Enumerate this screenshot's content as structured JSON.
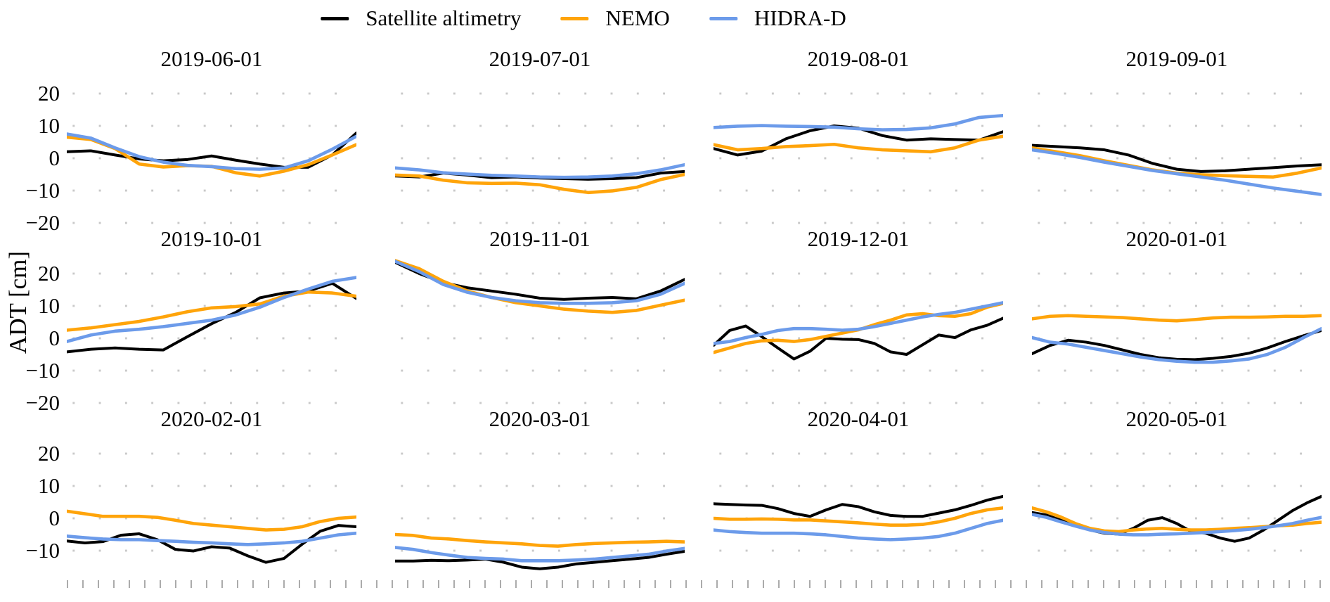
{
  "chart_data": {
    "type": "line",
    "layout": {
      "rows": 3,
      "cols": 4
    },
    "ylabel": "ADT [cm]",
    "ylim": [
      -25,
      25
    ],
    "yticks_full": [
      20,
      10,
      0,
      -10,
      -20
    ],
    "yticks_bottom_row": [
      20,
      10,
      0,
      -10
    ],
    "grid": "dotted horizontal gridlines every 10 cm",
    "legend_position": "top center",
    "legend": [
      {
        "label": "Satellite altimetry",
        "color": "#000000"
      },
      {
        "label": "NEMO",
        "color": "#FFA40A"
      },
      {
        "label": "HIDRA-D",
        "color": "#6C9BEA"
      }
    ],
    "colors": {
      "satellite": "#000000",
      "nemo": "#FFA40A",
      "hidra": "#6C9BEA",
      "grid_dot": "#c9c9c9",
      "axis_tick": "#ababab"
    },
    "subplots": [
      {
        "title": "2019-06-01",
        "satellite": [
          2.0,
          2.3,
          1.0,
          -0.2,
          -0.8,
          -0.4,
          0.7,
          -0.6,
          -1.8,
          -2.8,
          -2.8,
          1.0,
          7.8
        ],
        "nemo": [
          6.5,
          5.8,
          3.0,
          -1.8,
          -2.7,
          -2.3,
          -2.5,
          -4.5,
          -5.5,
          -4.0,
          -2.0,
          1.0,
          4.2
        ],
        "hidra": [
          7.5,
          6.2,
          3.2,
          0.5,
          -1.2,
          -2.2,
          -2.6,
          -3.2,
          -3.4,
          -3.0,
          -0.8,
          2.8,
          6.8
        ]
      },
      {
        "title": "2019-07-01",
        "satellite": [
          -5.5,
          -5.8,
          -4.6,
          -5.2,
          -6.0,
          -5.8,
          -6.1,
          -6.3,
          -6.5,
          -6.3,
          -6.0,
          -4.6,
          -4.1
        ],
        "nemo": [
          -5.2,
          -5.5,
          -6.8,
          -7.6,
          -7.8,
          -7.7,
          -8.2,
          -9.6,
          -10.6,
          -10.1,
          -9.0,
          -6.6,
          -5.0
        ],
        "hidra": [
          -3.0,
          -3.6,
          -4.5,
          -4.9,
          -5.3,
          -5.5,
          -5.8,
          -5.9,
          -5.8,
          -5.5,
          -4.8,
          -3.6,
          -2.0
        ]
      },
      {
        "title": "2019-08-01",
        "satellite": [
          3.0,
          1.0,
          2.2,
          6.0,
          8.5,
          10.0,
          9.3,
          7.0,
          5.6,
          6.0,
          5.8,
          5.6,
          8.2
        ],
        "nemo": [
          4.2,
          2.6,
          3.0,
          3.6,
          3.9,
          4.3,
          3.2,
          2.6,
          2.3,
          2.0,
          3.2,
          5.6,
          6.8
        ],
        "hidra": [
          9.5,
          9.9,
          10.1,
          9.9,
          9.8,
          9.6,
          9.1,
          8.8,
          8.9,
          9.4,
          10.6,
          12.6,
          13.2
        ]
      },
      {
        "title": "2019-09-01",
        "satellite": [
          4.0,
          3.6,
          3.2,
          2.6,
          1.0,
          -1.6,
          -3.4,
          -4.1,
          -3.9,
          -3.4,
          -2.9,
          -2.4,
          -2.0
        ],
        "nemo": [
          3.2,
          2.0,
          0.8,
          -0.8,
          -2.2,
          -3.6,
          -4.6,
          -5.1,
          -5.4,
          -5.6,
          -5.8,
          -4.6,
          -3.0
        ],
        "hidra": [
          2.6,
          1.5,
          0.2,
          -1.2,
          -2.5,
          -3.8,
          -4.8,
          -5.8,
          -6.8,
          -8.0,
          -9.2,
          -10.2,
          -11.2
        ]
      },
      {
        "title": "2019-10-01",
        "satellite": [
          -4.2,
          -3.4,
          -3.0,
          -3.4,
          -3.6,
          0.5,
          4.5,
          8.0,
          12.5,
          14.0,
          14.6,
          17.0,
          12.3
        ],
        "nemo": [
          2.5,
          3.2,
          4.2,
          5.2,
          6.6,
          8.2,
          9.4,
          9.8,
          10.6,
          13.0,
          14.3,
          14.0,
          13.0
        ],
        "hidra": [
          -1.0,
          1.0,
          2.2,
          2.8,
          3.6,
          4.6,
          5.6,
          7.2,
          9.6,
          12.6,
          15.2,
          17.6,
          18.8
        ]
      },
      {
        "title": "2019-11-01",
        "satellite": [
          23.5,
          20.0,
          17.2,
          15.6,
          14.6,
          13.6,
          12.4,
          12.0,
          12.4,
          12.6,
          12.2,
          14.6,
          18.2
        ],
        "nemo": [
          24.0,
          21.5,
          17.6,
          14.6,
          12.6,
          11.0,
          10.0,
          9.0,
          8.4,
          8.0,
          8.6,
          10.2,
          11.8
        ],
        "hidra": [
          23.8,
          20.6,
          16.6,
          14.2,
          12.6,
          11.6,
          11.0,
          10.8,
          10.8,
          11.0,
          11.6,
          13.6,
          17.0
        ]
      },
      {
        "title": "2019-12-01",
        "satellite": [
          -2.2,
          2.4,
          3.8,
          0.5,
          -3.0,
          -6.4,
          -4.0,
          0.0,
          -0.3,
          -0.4,
          -1.6,
          -4.2,
          -5.0,
          -2.0,
          1.0,
          0.2,
          2.6,
          4.0,
          6.2
        ],
        "nemo": [
          -4.4,
          -3.0,
          -1.6,
          -0.8,
          -0.6,
          -1.0,
          -0.4,
          0.6,
          1.6,
          2.6,
          4.2,
          5.6,
          7.2,
          7.6,
          7.0,
          6.8,
          7.6,
          9.6,
          10.8
        ],
        "hidra": [
          -1.6,
          -1.0,
          0.2,
          1.2,
          2.4,
          3.0,
          3.0,
          2.8,
          2.5,
          2.8,
          3.6,
          4.6,
          5.6,
          6.6,
          7.4,
          8.0,
          9.0,
          10.0,
          11.0
        ]
      },
      {
        "title": "2020-01-01",
        "satellite": [
          -4.8,
          -2.2,
          -0.6,
          -1.2,
          -2.2,
          -3.6,
          -5.0,
          -6.0,
          -6.5,
          -6.6,
          -6.2,
          -5.6,
          -4.6,
          -3.0,
          -1.0,
          0.8,
          2.4
        ],
        "nemo": [
          6.0,
          6.8,
          7.0,
          6.8,
          6.6,
          6.4,
          6.0,
          5.6,
          5.4,
          5.8,
          6.3,
          6.5,
          6.5,
          6.6,
          6.8,
          6.8,
          7.0
        ],
        "hidra": [
          0.2,
          -1.2,
          -1.8,
          -2.8,
          -3.8,
          -4.8,
          -5.8,
          -6.6,
          -7.1,
          -7.4,
          -7.4,
          -7.0,
          -6.4,
          -5.0,
          -2.8,
          0.2,
          3.0
        ]
      },
      {
        "title": "2020-02-01",
        "satellite": [
          -7.0,
          -7.6,
          -7.2,
          -5.2,
          -4.8,
          -6.6,
          -9.6,
          -10.1,
          -8.8,
          -9.2,
          -11.6,
          -13.6,
          -12.4,
          -8.0,
          -4.0,
          -2.2,
          -2.6
        ],
        "nemo": [
          2.2,
          1.4,
          0.6,
          0.6,
          0.6,
          0.3,
          -0.6,
          -1.6,
          -2.1,
          -2.6,
          -3.1,
          -3.6,
          -3.4,
          -2.6,
          -1.0,
          0.0,
          0.4
        ],
        "hidra": [
          -5.5,
          -6.0,
          -6.4,
          -6.6,
          -6.6,
          -6.9,
          -7.1,
          -7.4,
          -7.6,
          -7.9,
          -8.1,
          -7.9,
          -7.6,
          -7.1,
          -6.1,
          -5.1,
          -4.6
        ]
      },
      {
        "title": "2020-03-01",
        "satellite": [
          -13.2,
          -13.2,
          -13.0,
          -13.1,
          -12.9,
          -12.6,
          -13.6,
          -15.1,
          -15.6,
          -15.1,
          -14.1,
          -13.6,
          -13.1,
          -12.6,
          -12.1,
          -11.1,
          -10.2
        ],
        "nemo": [
          -5.0,
          -5.3,
          -6.1,
          -6.4,
          -6.9,
          -7.3,
          -7.6,
          -7.9,
          -8.4,
          -8.6,
          -8.1,
          -7.8,
          -7.6,
          -7.4,
          -7.3,
          -7.1,
          -7.3
        ],
        "hidra": [
          -9.0,
          -9.6,
          -10.6,
          -11.4,
          -12.1,
          -12.4,
          -12.6,
          -13.1,
          -13.1,
          -13.1,
          -12.9,
          -12.6,
          -12.1,
          -11.6,
          -11.1,
          -10.1,
          -9.3
        ]
      },
      {
        "title": "2020-04-01",
        "satellite": [
          4.5,
          4.3,
          4.1,
          4.0,
          3.0,
          1.5,
          0.6,
          2.6,
          4.3,
          3.6,
          2.0,
          0.9,
          0.6,
          0.6,
          1.6,
          2.6,
          4.0,
          5.6,
          6.8
        ],
        "nemo": [
          0.0,
          -0.3,
          -0.3,
          -0.2,
          -0.3,
          -0.5,
          -0.5,
          -0.8,
          -1.1,
          -1.4,
          -1.8,
          -2.1,
          -2.1,
          -1.9,
          -1.1,
          0.0,
          1.5,
          2.6,
          3.2
        ],
        "hidra": [
          -3.6,
          -4.1,
          -4.4,
          -4.6,
          -4.6,
          -4.6,
          -4.8,
          -5.1,
          -5.6,
          -6.1,
          -6.4,
          -6.6,
          -6.4,
          -6.1,
          -5.6,
          -4.6,
          -3.1,
          -1.6,
          -0.6
        ]
      },
      {
        "title": "2020-05-01",
        "satellite": [
          1.8,
          1.0,
          -0.6,
          -2.1,
          -3.6,
          -4.6,
          -4.9,
          -3.1,
          -0.6,
          0.2,
          -1.6,
          -4.1,
          -4.6,
          -6.1,
          -7.1,
          -6.1,
          -3.6,
          -0.6,
          2.4,
          4.8,
          6.8
        ],
        "nemo": [
          3.2,
          2.0,
          0.4,
          -1.6,
          -3.1,
          -3.9,
          -4.1,
          -3.6,
          -3.3,
          -3.1,
          -3.4,
          -3.6,
          -3.6,
          -3.4,
          -3.1,
          -2.9,
          -2.6,
          -2.3,
          -2.1,
          -1.6,
          -1.2
        ],
        "hidra": [
          1.2,
          0.3,
          -1.1,
          -2.4,
          -3.6,
          -4.4,
          -4.9,
          -5.1,
          -5.1,
          -4.9,
          -4.8,
          -4.6,
          -4.4,
          -4.1,
          -3.8,
          -3.4,
          -2.9,
          -2.3,
          -1.6,
          -0.6,
          0.3
        ]
      }
    ]
  }
}
